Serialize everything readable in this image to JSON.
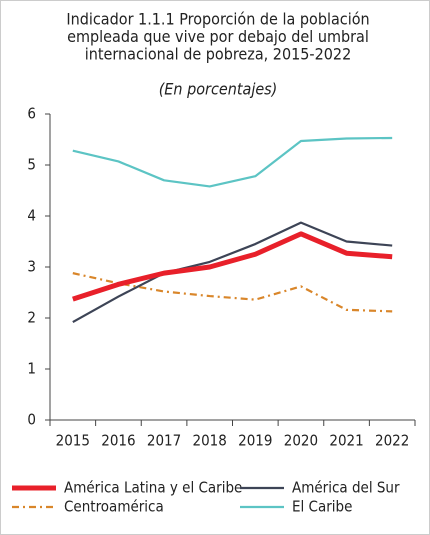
{
  "chart_data": {
    "type": "line",
    "title": [
      "Indicador 1.1.1 Proporción de la población",
      "empleada que vive por debajo del umbral",
      "internacional de pobreza, 2015-2022"
    ],
    "subtitle": "(En porcentajes)",
    "categories": [
      "2015",
      "2016",
      "2017",
      "2018",
      "2019",
      "2020",
      "2021",
      "2022"
    ],
    "series": [
      {
        "name": "América Latina y el Caribe",
        "color": "#e8202a",
        "linestyle": "solid",
        "values": [
          2.37,
          2.66,
          2.88,
          3.0,
          3.25,
          3.65,
          3.27,
          3.2
        ]
      },
      {
        "name": "América del Sur",
        "color": "#3d4456",
        "linestyle": "solid",
        "values": [
          1.92,
          2.42,
          2.88,
          3.1,
          3.45,
          3.87,
          3.5,
          3.42
        ]
      },
      {
        "name": "Centroamérica",
        "color": "#d9862a",
        "linestyle": "dashdot",
        "values": [
          2.88,
          2.68,
          2.52,
          2.43,
          2.36,
          2.62,
          2.16,
          2.13
        ]
      },
      {
        "name": "El Caribe",
        "color": "#5cc4c4",
        "linestyle": "solid",
        "values": [
          5.28,
          5.07,
          4.7,
          4.58,
          4.78,
          5.47,
          5.52,
          5.53
        ]
      }
    ],
    "ylim": [
      0,
      6
    ],
    "yticks": [
      0,
      1,
      2,
      3,
      4,
      5,
      6
    ],
    "grid": false
  }
}
